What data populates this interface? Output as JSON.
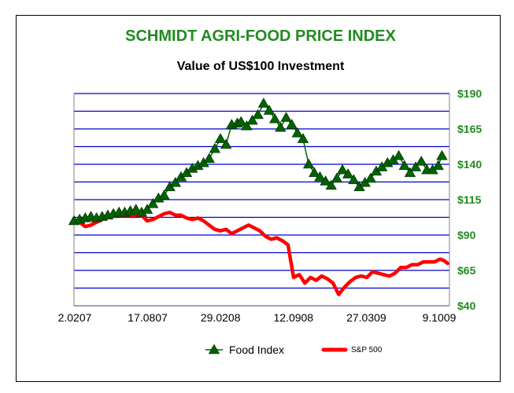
{
  "chart_data": {
    "type": "line",
    "title": "SCHMIDT AGRI-FOOD PRICE INDEX",
    "subtitle": "Value of US$100 Investment",
    "x_tick_labels": [
      "2.0207",
      "17.0807",
      "29.0208",
      "12.0908",
      "27.0309",
      "9.1009"
    ],
    "y_tick_labels": [
      "$40",
      "$65",
      "$90",
      "$115",
      "$140",
      "$165",
      "$190"
    ],
    "ylim": [
      40,
      190
    ],
    "y_gridline_step": 12.5,
    "grid": true,
    "y_axis_side": "right",
    "legend_position": "bottom",
    "x_range": [
      0,
      100
    ],
    "series": [
      {
        "name": "Food Index",
        "color": "#006400",
        "marker": "triangle",
        "x": [
          0,
          1.5,
          3,
          4.5,
          6,
          7.5,
          9,
          10.5,
          12,
          13.5,
          15,
          16.5,
          18,
          19.5,
          21,
          22.5,
          24,
          25.5,
          27,
          28.5,
          30,
          31.5,
          33,
          34.5,
          36,
          37.5,
          39,
          40.5,
          42,
          43.5,
          44.5,
          46,
          47.5,
          49,
          50.5,
          52,
          53.5,
          55,
          56.5,
          58,
          59.5,
          61,
          62.5,
          64,
          65.5,
          67,
          68.5,
          70,
          71.5,
          73,
          74.5,
          76,
          77.5,
          79,
          80.5,
          82,
          83.5,
          85,
          86.5,
          88,
          89.5,
          91,
          92.5,
          94,
          95.5,
          97
        ],
        "values": [
          100,
          101,
          102,
          103,
          102,
          103,
          104,
          105,
          106,
          106,
          107,
          108,
          106,
          108,
          112,
          116,
          118,
          124,
          127,
          131,
          134,
          137,
          139,
          141,
          144,
          151,
          158,
          154,
          168,
          169,
          170,
          167,
          171,
          175,
          183,
          178,
          172,
          166,
          173,
          168,
          162,
          158,
          140,
          134,
          131,
          128,
          125,
          130,
          136,
          133,
          129,
          124,
          127,
          130,
          135,
          138,
          141,
          143,
          146,
          139,
          134,
          138,
          142,
          136,
          136,
          139
        ],
        "last_point": [
          98,
          146
        ]
      },
      {
        "name": "S&P 500",
        "color": "#ff0000",
        "x": [
          0,
          1.5,
          3,
          4.5,
          6,
          7.5,
          9,
          10.5,
          12,
          13.5,
          15,
          16.5,
          18,
          19.5,
          21,
          22.5,
          24,
          25.5,
          27,
          28.5,
          30,
          31.5,
          33,
          34.5,
          36,
          37.5,
          39,
          40.5,
          42,
          43.5,
          45,
          46.5,
          48,
          49.5,
          51,
          52.5,
          54,
          55.5,
          57,
          58.5,
          60,
          61.5,
          63,
          64.5,
          66,
          67.5,
          69,
          70.5,
          72,
          73.5,
          75,
          76.5,
          78,
          79.5,
          81,
          82.5,
          84,
          85.5,
          87,
          88.5,
          90,
          91.5,
          93,
          94.5,
          96,
          97.5,
          98.5,
          99.5
        ],
        "values": [
          100,
          99,
          96,
          97,
          99,
          101,
          103,
          104,
          104,
          104,
          104,
          104,
          104,
          100,
          101,
          103,
          105,
          106,
          104,
          104,
          102,
          101,
          102,
          100,
          97,
          94,
          93,
          94,
          91,
          93,
          95,
          97,
          95,
          93,
          89,
          87,
          88,
          86,
          83,
          60,
          62,
          56,
          60,
          58,
          61,
          59,
          56,
          48,
          53,
          57,
          60,
          61,
          60,
          64,
          63,
          62,
          61,
          63,
          67,
          67,
          69,
          69,
          71,
          71,
          71,
          73,
          72,
          70
        ]
      }
    ]
  }
}
